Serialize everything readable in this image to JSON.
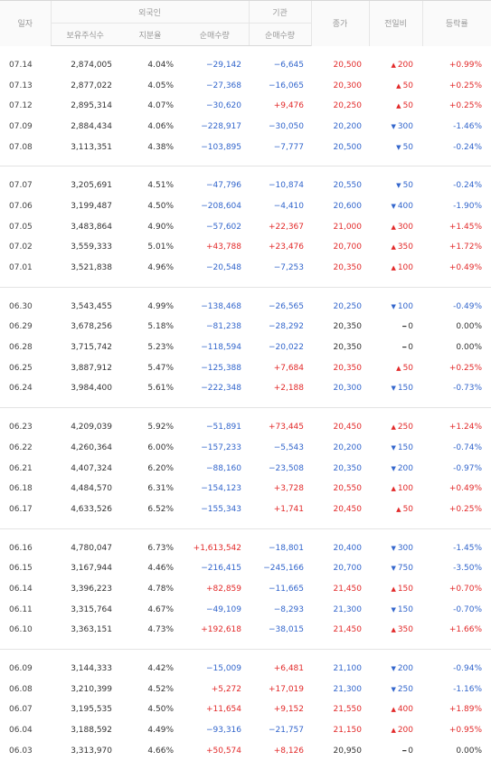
{
  "header": {
    "date": "일자",
    "foreign": "외국인",
    "inst": "기관",
    "close": "종가",
    "diff": "전일비",
    "rate": "등락률",
    "holdings": "보유주식수",
    "share": "지분율",
    "foreign_net": "순매수량",
    "inst_net": "순매수량"
  },
  "groups": [
    [
      {
        "date": "07.14",
        "hold": "2,874,005",
        "share": "4.04%",
        "fnet": "−29,142",
        "inet": "−6,645",
        "close": "20,500",
        "dir": "up",
        "diff": "200",
        "rate": "+0.99%"
      },
      {
        "date": "07.13",
        "hold": "2,877,022",
        "share": "4.05%",
        "fnet": "−27,368",
        "inet": "−16,065",
        "close": "20,300",
        "dir": "up",
        "diff": "50",
        "rate": "+0.25%"
      },
      {
        "date": "07.12",
        "hold": "2,895,314",
        "share": "4.07%",
        "fnet": "−30,620",
        "inet": "+9,476",
        "close": "20,250",
        "dir": "up",
        "diff": "50",
        "rate": "+0.25%"
      },
      {
        "date": "07.09",
        "hold": "2,884,434",
        "share": "4.06%",
        "fnet": "−228,917",
        "inet": "−30,050",
        "close": "20,200",
        "dir": "down",
        "diff": "300",
        "rate": "-1.46%"
      },
      {
        "date": "07.08",
        "hold": "3,113,351",
        "share": "4.38%",
        "fnet": "−103,895",
        "inet": "−7,777",
        "close": "20,500",
        "dir": "down",
        "diff": "50",
        "rate": "-0.24%"
      }
    ],
    [
      {
        "date": "07.07",
        "hold": "3,205,691",
        "share": "4.51%",
        "fnet": "−47,796",
        "inet": "−10,874",
        "close": "20,550",
        "dir": "down",
        "diff": "50",
        "rate": "-0.24%"
      },
      {
        "date": "07.06",
        "hold": "3,199,487",
        "share": "4.50%",
        "fnet": "−208,604",
        "inet": "−4,410",
        "close": "20,600",
        "dir": "down",
        "diff": "400",
        "rate": "-1.90%"
      },
      {
        "date": "07.05",
        "hold": "3,483,864",
        "share": "4.90%",
        "fnet": "−57,602",
        "inet": "+22,367",
        "close": "21,000",
        "dir": "up",
        "diff": "300",
        "rate": "+1.45%"
      },
      {
        "date": "07.02",
        "hold": "3,559,333",
        "share": "5.01%",
        "fnet": "+43,788",
        "inet": "+23,476",
        "close": "20,700",
        "dir": "up",
        "diff": "350",
        "rate": "+1.72%"
      },
      {
        "date": "07.01",
        "hold": "3,521,838",
        "share": "4.96%",
        "fnet": "−20,548",
        "inet": "−7,253",
        "close": "20,350",
        "dir": "up",
        "diff": "100",
        "rate": "+0.49%"
      }
    ],
    [
      {
        "date": "06.30",
        "hold": "3,543,455",
        "share": "4.99%",
        "fnet": "−138,468",
        "inet": "−26,565",
        "close": "20,250",
        "dir": "down",
        "diff": "100",
        "rate": "-0.49%"
      },
      {
        "date": "06.29",
        "hold": "3,678,256",
        "share": "5.18%",
        "fnet": "−81,238",
        "inet": "−28,292",
        "close": "20,350",
        "dir": "flat",
        "diff": "0",
        "rate": "0.00%"
      },
      {
        "date": "06.28",
        "hold": "3,715,742",
        "share": "5.23%",
        "fnet": "−118,594",
        "inet": "−20,022",
        "close": "20,350",
        "dir": "flat",
        "diff": "0",
        "rate": "0.00%"
      },
      {
        "date": "06.25",
        "hold": "3,887,912",
        "share": "5.47%",
        "fnet": "−125,388",
        "inet": "+7,684",
        "close": "20,350",
        "dir": "up",
        "diff": "50",
        "rate": "+0.25%"
      },
      {
        "date": "06.24",
        "hold": "3,984,400",
        "share": "5.61%",
        "fnet": "−222,348",
        "inet": "+2,188",
        "close": "20,300",
        "dir": "down",
        "diff": "150",
        "rate": "-0.73%"
      }
    ],
    [
      {
        "date": "06.23",
        "hold": "4,209,039",
        "share": "5.92%",
        "fnet": "−51,891",
        "inet": "+73,445",
        "close": "20,450",
        "dir": "up",
        "diff": "250",
        "rate": "+1.24%"
      },
      {
        "date": "06.22",
        "hold": "4,260,364",
        "share": "6.00%",
        "fnet": "−157,233",
        "inet": "−5,543",
        "close": "20,200",
        "dir": "down",
        "diff": "150",
        "rate": "-0.74%"
      },
      {
        "date": "06.21",
        "hold": "4,407,324",
        "share": "6.20%",
        "fnet": "−88,160",
        "inet": "−23,508",
        "close": "20,350",
        "dir": "down",
        "diff": "200",
        "rate": "-0.97%"
      },
      {
        "date": "06.18",
        "hold": "4,484,570",
        "share": "6.31%",
        "fnet": "−154,123",
        "inet": "+3,728",
        "close": "20,550",
        "dir": "up",
        "diff": "100",
        "rate": "+0.49%"
      },
      {
        "date": "06.17",
        "hold": "4,633,526",
        "share": "6.52%",
        "fnet": "−155,343",
        "inet": "+1,741",
        "close": "20,450",
        "dir": "up",
        "diff": "50",
        "rate": "+0.25%"
      }
    ],
    [
      {
        "date": "06.16",
        "hold": "4,780,047",
        "share": "6.73%",
        "fnet": "+1,613,542",
        "inet": "−18,801",
        "close": "20,400",
        "dir": "down",
        "diff": "300",
        "rate": "-1.45%"
      },
      {
        "date": "06.15",
        "hold": "3,167,944",
        "share": "4.46%",
        "fnet": "−216,415",
        "inet": "−245,166",
        "close": "20,700",
        "dir": "down",
        "diff": "750",
        "rate": "-3.50%"
      },
      {
        "date": "06.14",
        "hold": "3,396,223",
        "share": "4.78%",
        "fnet": "+82,859",
        "inet": "−11,665",
        "close": "21,450",
        "dir": "up",
        "diff": "150",
        "rate": "+0.70%"
      },
      {
        "date": "06.11",
        "hold": "3,315,764",
        "share": "4.67%",
        "fnet": "−49,109",
        "inet": "−8,293",
        "close": "21,300",
        "dir": "down",
        "diff": "150",
        "rate": "-0.70%"
      },
      {
        "date": "06.10",
        "hold": "3,363,151",
        "share": "4.73%",
        "fnet": "+192,618",
        "inet": "−38,015",
        "close": "21,450",
        "dir": "up",
        "diff": "350",
        "rate": "+1.66%"
      }
    ],
    [
      {
        "date": "06.09",
        "hold": "3,144,333",
        "share": "4.42%",
        "fnet": "−15,009",
        "inet": "+6,481",
        "close": "21,100",
        "dir": "down",
        "diff": "200",
        "rate": "-0.94%"
      },
      {
        "date": "06.08",
        "hold": "3,210,399",
        "share": "4.52%",
        "fnet": "+5,272",
        "inet": "+17,019",
        "close": "21,300",
        "dir": "down",
        "diff": "250",
        "rate": "-1.16%"
      },
      {
        "date": "06.07",
        "hold": "3,195,535",
        "share": "4.50%",
        "fnet": "+11,654",
        "inet": "+9,152",
        "close": "21,550",
        "dir": "up",
        "diff": "400",
        "rate": "+1.89%"
      },
      {
        "date": "06.04",
        "hold": "3,188,592",
        "share": "4.49%",
        "fnet": "−93,316",
        "inet": "−21,757",
        "close": "21,150",
        "dir": "up",
        "diff": "200",
        "rate": "+0.95%"
      },
      {
        "date": "06.03",
        "hold": "3,313,970",
        "share": "4.66%",
        "fnet": "+50,574",
        "inet": "+8,126",
        "close": "20,950",
        "dir": "flat",
        "diff": "0",
        "rate": "0.00%"
      }
    ]
  ],
  "colors": {
    "up": "#e22a2a",
    "down": "#3366cc",
    "flat": "#333333"
  }
}
